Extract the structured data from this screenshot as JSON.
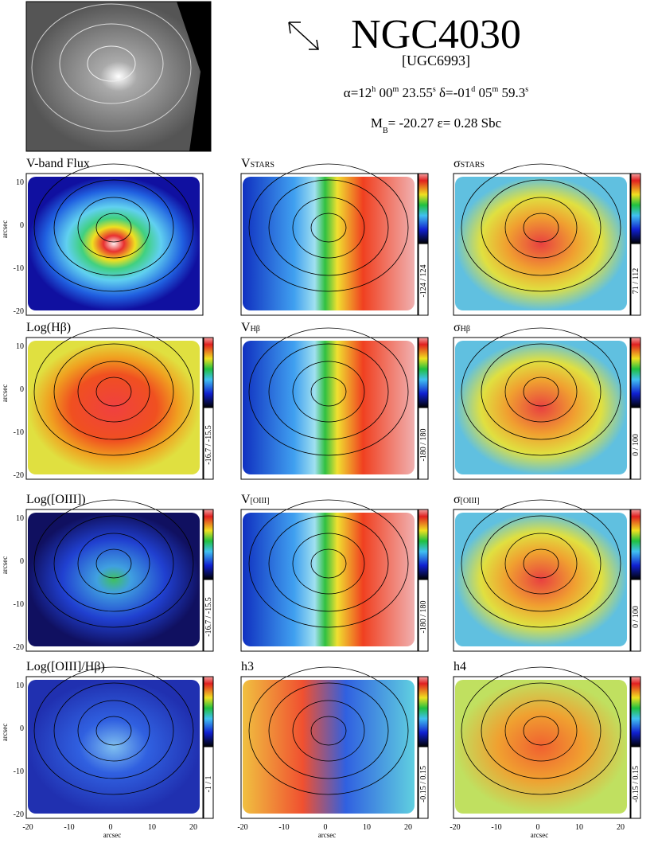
{
  "header": {
    "title": "NGC4030",
    "subtitle": "[UGC6993]",
    "coordinates": [
      {
        "t": "α=12"
      },
      {
        "sup": "h"
      },
      {
        "t": " 00"
      },
      {
        "sup": "m"
      },
      {
        "t": " 23.55"
      },
      {
        "sup": "s"
      },
      {
        "t": "   δ=-01"
      },
      {
        "sup": "d"
      },
      {
        "t": " 05"
      },
      {
        "sup": "m"
      },
      {
        "t": " 59.3"
      },
      {
        "sup": "s"
      }
    ],
    "properties": [
      {
        "t": "M"
      },
      {
        "sub": "B"
      },
      {
        "t": "= -20.27    ε= 0.28    Sbc"
      }
    ]
  },
  "axes": {
    "label": "arcsec",
    "yticks": [
      "10",
      "0",
      "-10",
      "-20"
    ],
    "xticks": [
      "-20",
      "-10",
      "0",
      "10",
      "20"
    ]
  },
  "panels": [
    {
      "title": "V-band Flux"
    },
    {
      "title": "V",
      "sub": "STARS",
      "range": "-124 / 124"
    },
    {
      "title": "σ",
      "sub": "STARS",
      "range": "71 / 112"
    },
    {
      "title": "Log(Hβ)",
      "range": "-16.7 / -15.5"
    },
    {
      "title": "V",
      "sub": "Hβ",
      "range": "-180 / 180"
    },
    {
      "title": "σ",
      "sub": "Hβ",
      "range": "0 / 100"
    },
    {
      "title": "Log([OIII])",
      "range": "-16.7 / -15.5"
    },
    {
      "title": "V",
      "sub": "[OIII]",
      "range": "-180 / 180"
    },
    {
      "title": "σ",
      "sub": "[OIII]",
      "range": "0 / 100"
    },
    {
      "title": "Log([OIII]/Hβ)",
      "range": "-1 / 1"
    },
    {
      "title": "h3",
      "range": "-0.15 / 0.15"
    },
    {
      "title": "h4",
      "range": "-0.15 / 0.15"
    }
  ]
}
